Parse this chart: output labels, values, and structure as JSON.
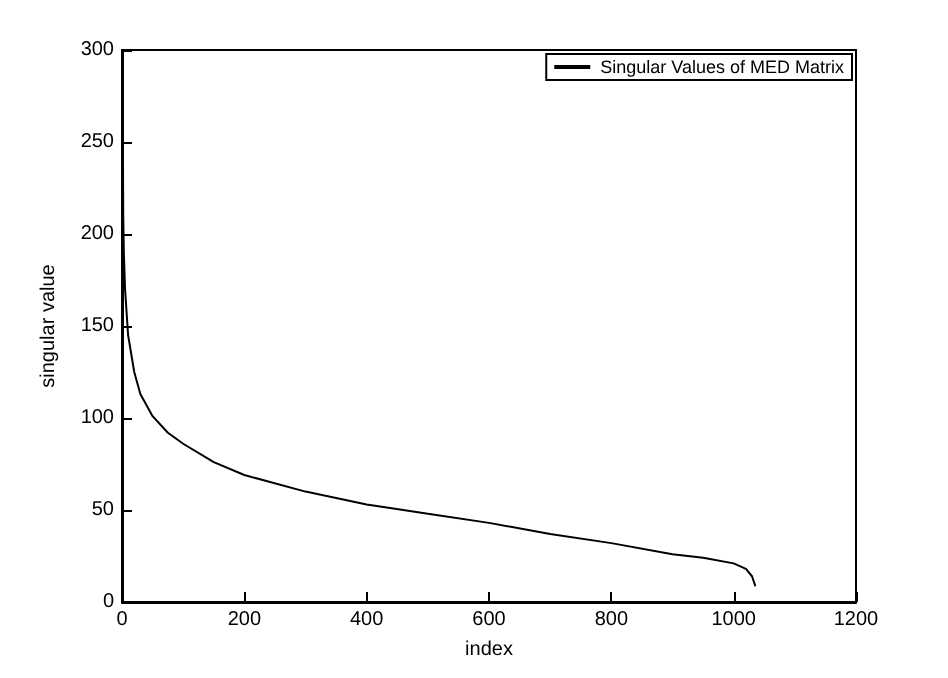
{
  "chart_data": {
    "type": "line",
    "xlabel": "index",
    "ylabel": "singular value",
    "series": [
      {
        "name": "Singular Values of MED Matrix",
        "color": "#000000",
        "x": [
          1,
          2,
          3,
          5,
          10,
          20,
          30,
          50,
          75,
          100,
          150,
          200,
          300,
          400,
          500,
          600,
          700,
          800,
          900,
          950,
          1000,
          1020,
          1030,
          1035
        ],
        "values": [
          283,
          210,
          190,
          170,
          145,
          125,
          113,
          101,
          92,
          86,
          76,
          69,
          60,
          53,
          48,
          43,
          37,
          32,
          26,
          24,
          21,
          18,
          14,
          9
        ]
      }
    ],
    "xlim": [
      0,
      1200
    ],
    "xticks": [
      0,
      200,
      400,
      600,
      800,
      1000,
      1200
    ],
    "ylim": [
      0,
      300
    ],
    "yticks": [
      0,
      50,
      100,
      150,
      200,
      250,
      300
    ],
    "grid": false,
    "legend": "top right",
    "marker": "none",
    "line_style": "solid"
  }
}
